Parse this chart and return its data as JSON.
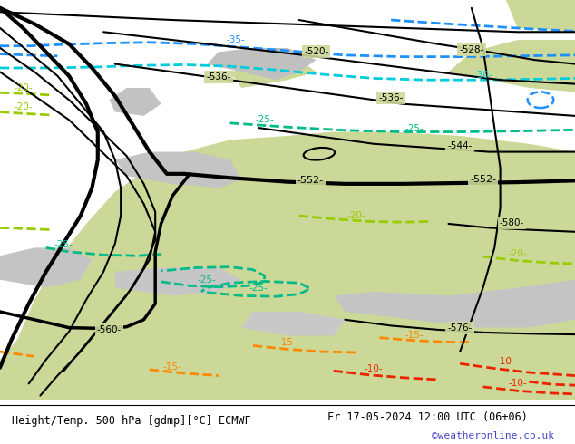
{
  "title_left": "Height/Temp. 500 hPa [gdmp][°C] ECMWF",
  "title_right": "Fr 17-05-2024 12:00 UTC (06+06)",
  "credit": "©weatheronline.co.uk",
  "green_bg": "#ccd898",
  "gray_bg": "#d0d0d0",
  "white_bg": "#ffffff",
  "black": "#000000",
  "blue_temp": "#1e90ff",
  "cyan_temp": "#00ccdd",
  "teal_temp": "#00bb88",
  "ygr_temp": "#99cc00",
  "orange_temp": "#ff8800",
  "red_temp": "#ee2200",
  "credit_color": "#4444cc",
  "figsize": [
    6.34,
    4.9
  ],
  "dpi": 100
}
